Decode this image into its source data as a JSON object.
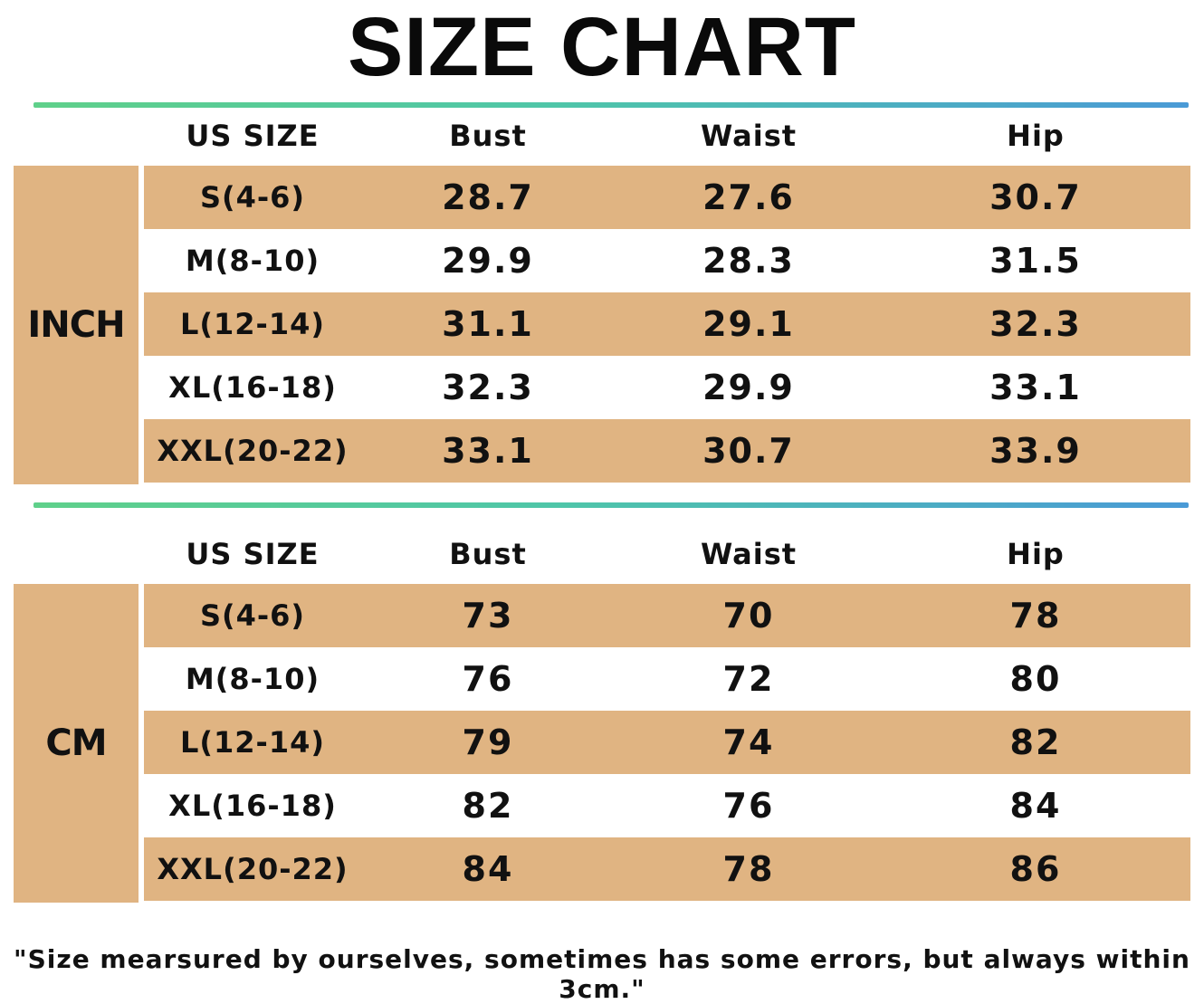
{
  "title": "SIZE CHART",
  "headers": {
    "size": "US SIZE",
    "bust": "Bust",
    "waist": "Waist",
    "hip": "Hip"
  },
  "inch": {
    "unit": "INCH",
    "rows": [
      {
        "size": "S(4-6)",
        "bust": "28.7",
        "waist": "27.6",
        "hip": "30.7"
      },
      {
        "size": "M(8-10)",
        "bust": "29.9",
        "waist": "28.3",
        "hip": "31.5"
      },
      {
        "size": "L(12-14)",
        "bust": "31.1",
        "waist": "29.1",
        "hip": "32.3"
      },
      {
        "size": "XL(16-18)",
        "bust": "32.3",
        "waist": "29.9",
        "hip": "33.1"
      },
      {
        "size": "XXL(20-22)",
        "bust": "33.1",
        "waist": "30.7",
        "hip": "33.9"
      }
    ]
  },
  "cm": {
    "unit": "CM",
    "rows": [
      {
        "size": "S(4-6)",
        "bust": "73",
        "waist": "70",
        "hip": "78"
      },
      {
        "size": "M(8-10)",
        "bust": "76",
        "waist": "72",
        "hip": "80"
      },
      {
        "size": "L(12-14)",
        "bust": "79",
        "waist": "74",
        "hip": "82"
      },
      {
        "size": "XL(16-18)",
        "bust": "82",
        "waist": "76",
        "hip": "84"
      },
      {
        "size": "XXL(20-22)",
        "bust": "84",
        "waist": "78",
        "hip": "86"
      }
    ]
  },
  "note": "\"Size mearsured by ourselves, sometimes has some errors, but always within 3cm.\"",
  "colors": {
    "row_shade": "#e0b482",
    "divider_start": "#5fd08a",
    "divider_end": "#4a9ad6"
  }
}
